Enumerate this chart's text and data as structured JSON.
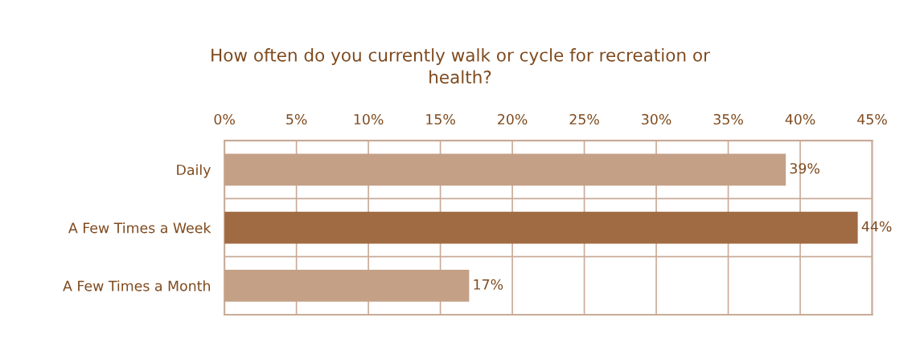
{
  "chart_data": {
    "type": "bar",
    "orientation": "horizontal",
    "title": "How often do you currently walk or cycle for recreation or\nhealth?",
    "categories": [
      "Daily",
      "A Few Times a Week",
      "A Few Times a Month"
    ],
    "values": [
      39,
      44,
      17
    ],
    "colors": [
      "#c4a086",
      "#a06a42",
      "#c4a086"
    ],
    "value_labels": [
      "39%",
      "44%",
      "17%"
    ],
    "xlim": [
      0,
      45
    ],
    "xticks": [
      {
        "value": 0,
        "label": "0%"
      },
      {
        "value": 5,
        "label": "5%"
      },
      {
        "value": 10,
        "label": "10%"
      },
      {
        "value": 15,
        "label": "15%"
      },
      {
        "value": 20,
        "label": "20%"
      },
      {
        "value": 25,
        "label": "25%"
      },
      {
        "value": 30,
        "label": "30%"
      },
      {
        "value": 35,
        "label": "35%"
      },
      {
        "value": 40,
        "label": "40%"
      },
      {
        "value": 45,
        "label": "45%"
      }
    ],
    "grid": true,
    "legend": false
  }
}
